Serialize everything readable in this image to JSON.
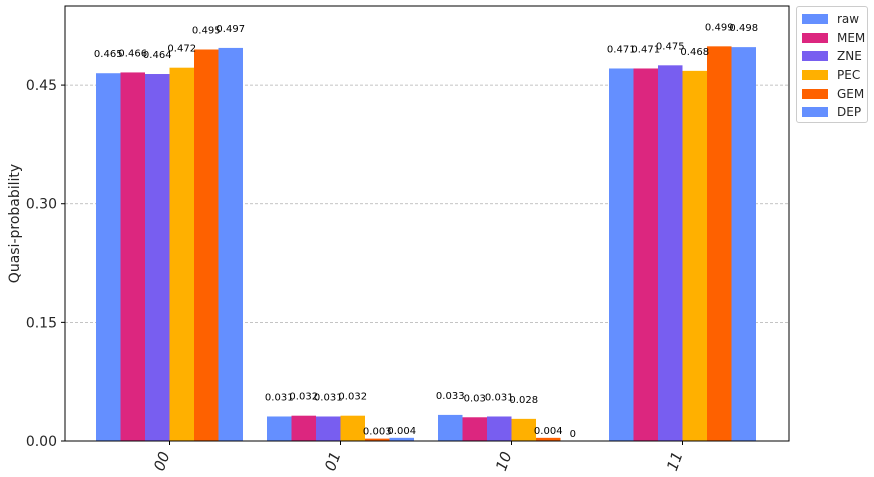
{
  "chart_data": {
    "type": "bar",
    "categories": [
      "00",
      "01",
      "10",
      "11"
    ],
    "series": [
      {
        "name": "raw",
        "color": "#648fff",
        "values": [
          0.465,
          0.031,
          0.033,
          0.471
        ],
        "labels": [
          "0.465",
          "0.031",
          "0.033",
          "0.471"
        ]
      },
      {
        "name": "MEM",
        "color": "#dc267f",
        "values": [
          0.466,
          0.032,
          0.03,
          0.471
        ],
        "labels": [
          "0.466",
          "0.032",
          "0.03",
          "0.471"
        ]
      },
      {
        "name": "ZNE",
        "color": "#785ef0",
        "values": [
          0.464,
          0.031,
          0.031,
          0.475
        ],
        "labels": [
          "0.464",
          "0.031",
          "0.031",
          "0.475"
        ]
      },
      {
        "name": "PEC",
        "color": "#ffb000",
        "values": [
          0.472,
          0.032,
          0.028,
          0.468
        ],
        "labels": [
          "0.472",
          "0.032",
          "0.028",
          "0.468"
        ]
      },
      {
        "name": "GEM",
        "color": "#fe6100",
        "values": [
          0.495,
          0.003,
          0.004,
          0.499
        ],
        "labels": [
          "0.495",
          "0.003",
          "0.004",
          "0.499"
        ]
      },
      {
        "name": "DEP",
        "color": "#648fff",
        "values": [
          0.497,
          0.004,
          0.0,
          0.498
        ],
        "labels": [
          "0.497",
          "0.004",
          "0",
          "0.498"
        ]
      }
    ],
    "ylabel": "Quasi-probability",
    "ylim": [
      0,
      0.55
    ],
    "yticks": [
      "0.00",
      "0.15",
      "0.30",
      "0.45"
    ],
    "ytick_values": [
      0,
      0.15,
      0.3,
      0.45
    ],
    "grid": "y-dashed",
    "legend_position": "outside-top-right"
  }
}
